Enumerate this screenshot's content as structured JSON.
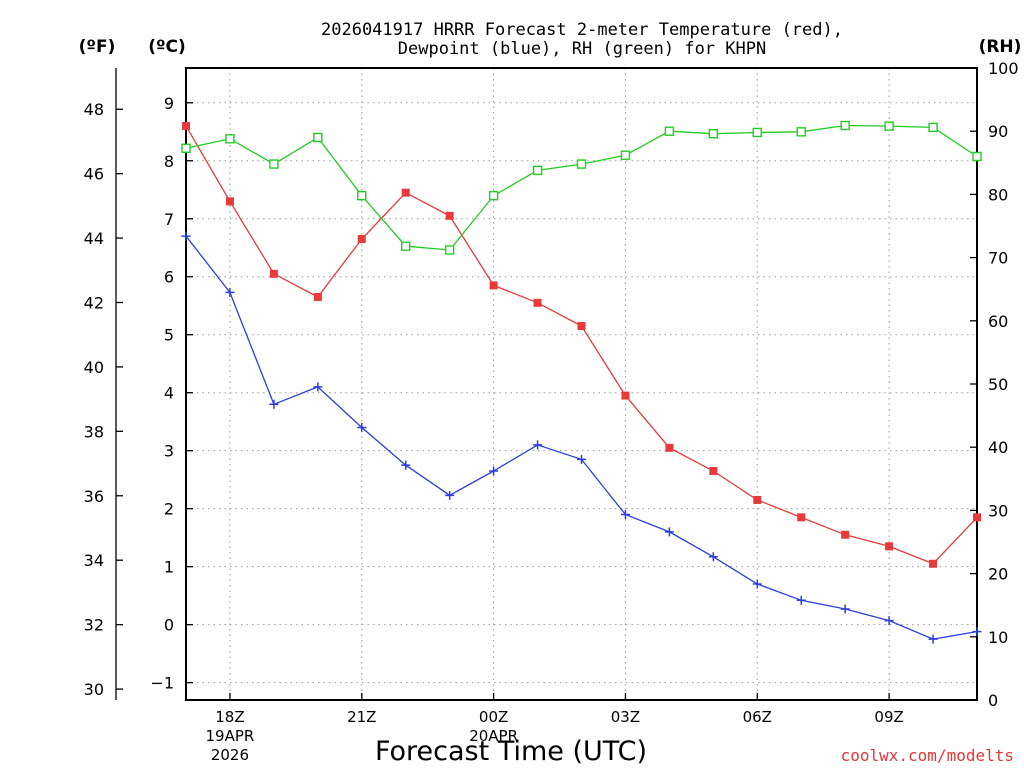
{
  "chart_data": {
    "type": "line",
    "title_line1": "2026041917 HRRR Forecast 2-meter Temperature (red),",
    "title_line2": "Dewpoint (blue), RH (green) for KHPN",
    "xlabel": "Forecast Time (UTC)",
    "unit_f": "(ºF)",
    "unit_c": "(ºC)",
    "unit_rh": "(RH)",
    "credit": "coolwx.com/modelts",
    "x_hours": [
      17,
      18,
      19,
      20,
      21,
      22,
      23,
      24,
      25,
      26,
      27,
      28,
      29,
      30,
      31,
      32,
      33,
      34,
      35
    ],
    "x_ticks": [
      {
        "hour": 18,
        "label": "18Z",
        "date": "19APR",
        "year": "2026"
      },
      {
        "hour": 21,
        "label": "21Z",
        "date": "",
        "year": ""
      },
      {
        "hour": 24,
        "label": "00Z",
        "date": "20APR",
        "year": ""
      },
      {
        "hour": 27,
        "label": "03Z",
        "date": "",
        "year": ""
      },
      {
        "hour": 30,
        "label": "06Z",
        "date": "",
        "year": ""
      },
      {
        "hour": 33,
        "label": "09Z",
        "date": "",
        "year": ""
      }
    ],
    "xlim": [
      17,
      35
    ],
    "celsius_lim": [
      -1.3,
      9.6
    ],
    "celsius_ticks": [
      "-1",
      "0",
      "1",
      "2",
      "3",
      "4",
      "5",
      "6",
      "7",
      "8",
      "9"
    ],
    "fahrenheit_ticks": [
      "30",
      "32",
      "34",
      "36",
      "38",
      "40",
      "42",
      "44",
      "46",
      "48"
    ],
    "rh_lim": [
      0,
      100
    ],
    "rh_ticks": [
      "0",
      "10",
      "20",
      "30",
      "40",
      "50",
      "60",
      "70",
      "80",
      "90",
      "100"
    ],
    "series": [
      {
        "name": "Temperature",
        "axis": "celsius",
        "color": "#e83a3a",
        "marker": "filled-square",
        "values": [
          8.6,
          7.3,
          6.05,
          5.65,
          6.65,
          7.45,
          7.05,
          5.85,
          5.55,
          5.15,
          3.95,
          3.05,
          2.65,
          2.15,
          1.85,
          1.55,
          1.35,
          1.05,
          1.85
        ]
      },
      {
        "name": "Dewpoint",
        "axis": "celsius",
        "color": "#2b3fe0",
        "marker": "plus",
        "values": [
          6.7,
          5.73,
          3.8,
          4.1,
          3.4,
          2.75,
          2.23,
          2.65,
          3.1,
          2.85,
          1.9,
          1.6,
          1.17,
          0.7,
          0.42,
          0.27,
          0.07,
          -0.25,
          -0.12
        ]
      },
      {
        "name": "RH",
        "axis": "rh",
        "color": "#22cc22",
        "marker": "open-square",
        "values": [
          87.3,
          88.8,
          84.8,
          89.0,
          79.8,
          71.8,
          71.2,
          79.8,
          83.8,
          84.8,
          86.2,
          90.0,
          89.6,
          89.8,
          89.9,
          90.9,
          90.8,
          90.6,
          86.0
        ]
      }
    ]
  }
}
